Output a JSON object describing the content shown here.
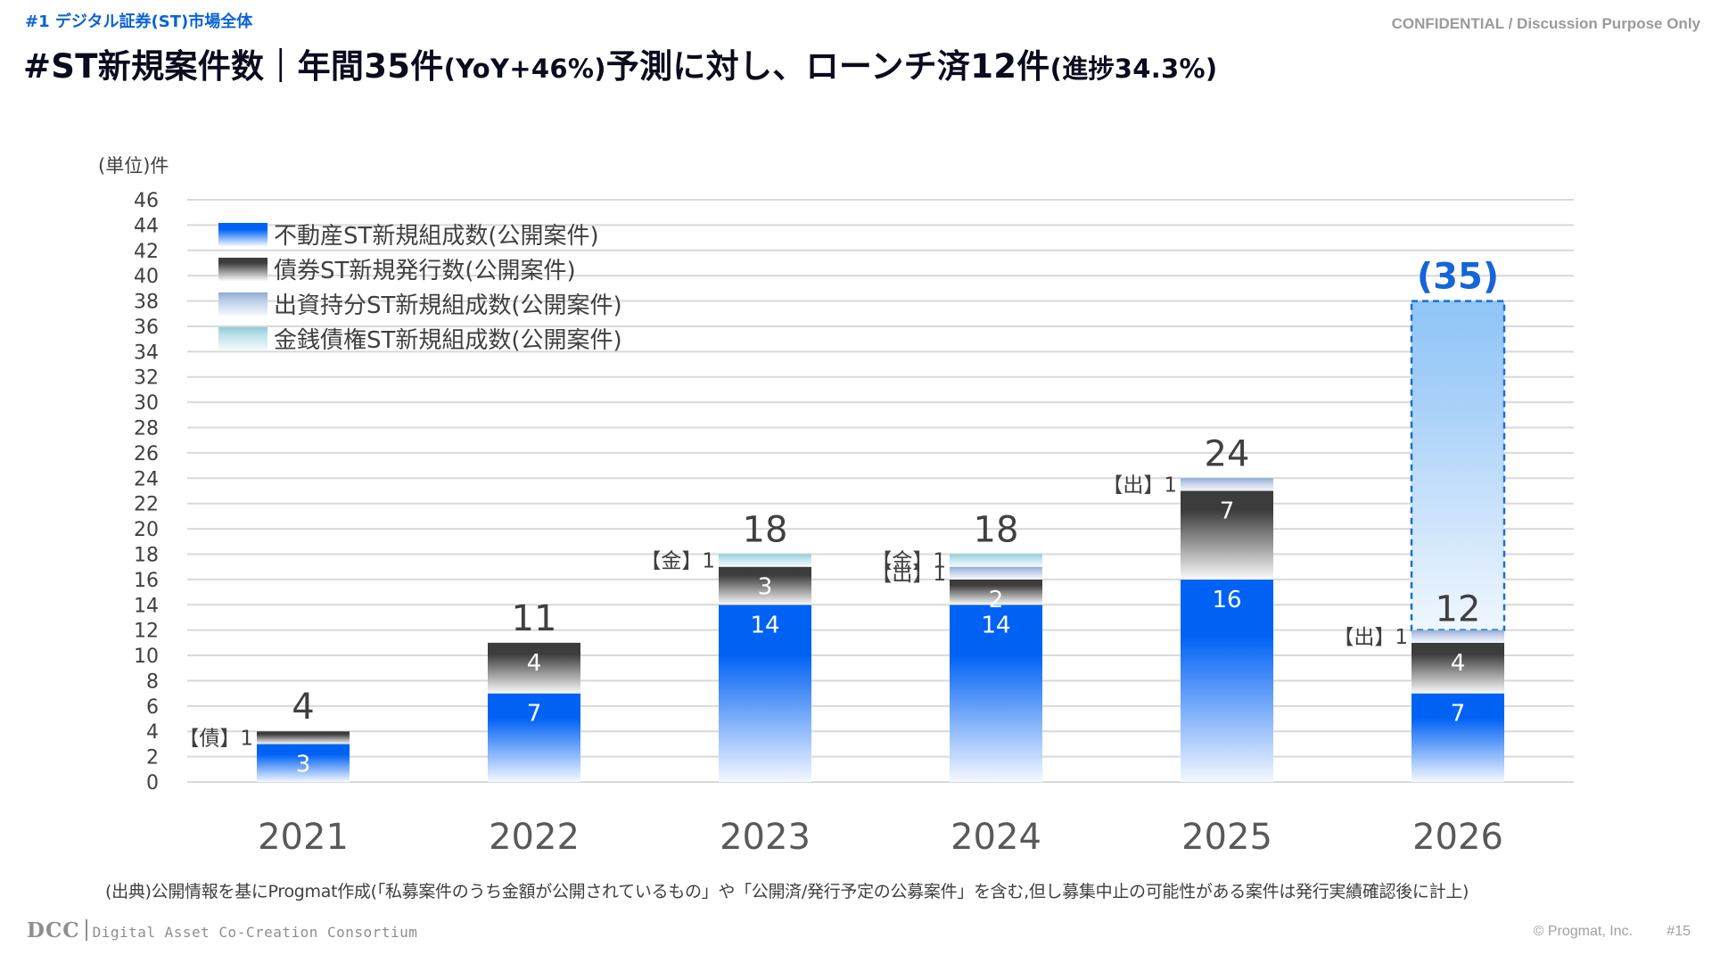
{
  "header": {
    "section_label": "#1  デジタル証券(ST)市場全体",
    "confidential": "CONFIDENTIAL / Discussion Purpose Only",
    "title_main_1": "#ST新規案件数｜年間35件",
    "title_small_1": "(YoY+46%)",
    "title_main_2": "予測に対し、ローンチ済12件",
    "title_small_2": "(進捗34.3%)"
  },
  "colors": {
    "real_estate": "#0062f5",
    "bond": "#3c3c3c",
    "equity": "#8eaad6",
    "monetary": "#8fcbd8",
    "forecast": "#8ec5f7",
    "forecast_border": "#1a6fd0",
    "forecast_label": "#1565d8",
    "grid": "#d9d9d9",
    "text": "#404040"
  },
  "chart_data": {
    "type": "bar",
    "stacked": true,
    "title": "",
    "xlabel": "",
    "ylabel": "(単位)件",
    "ylim": [
      0,
      46
    ],
    "ytick_step": 2,
    "yticks": [
      0,
      2,
      4,
      6,
      8,
      10,
      12,
      14,
      16,
      18,
      20,
      22,
      24,
      26,
      28,
      30,
      32,
      34,
      36,
      38,
      40,
      42,
      44,
      46
    ],
    "grid": true,
    "legend_position": "top-left",
    "categories": [
      "2021",
      "2022",
      "2023",
      "2024",
      "2025",
      "2026"
    ],
    "series": [
      {
        "key": "real_estate",
        "name": "不動産ST新規組成数(公開案件)",
        "values": [
          3,
          7,
          14,
          14,
          16,
          7
        ],
        "label_style": "inside"
      },
      {
        "key": "bond",
        "name": "債券ST新規発行数(公開案件)",
        "values": [
          1,
          4,
          3,
          2,
          7,
          4
        ],
        "label_style": "inside"
      },
      {
        "key": "equity",
        "name": "出資持分ST新規組成数(公開案件)",
        "values": [
          0,
          0,
          0,
          1,
          1,
          1
        ],
        "label_style": "side"
      },
      {
        "key": "monetary",
        "name": "金銭債権ST新規組成数(公開案件)",
        "values": [
          0,
          0,
          1,
          1,
          0,
          0
        ],
        "label_style": "side"
      }
    ],
    "side_labels": {
      "bond": "【債】",
      "equity": "【出】",
      "monetary": "【金】"
    },
    "small_segment_side_label": {
      "2021": "bond"
    },
    "totals": [
      4,
      11,
      18,
      18,
      24,
      12
    ],
    "forecast": {
      "category": "2026",
      "label": "(35)",
      "from": 12,
      "to": 38,
      "value": 35
    }
  },
  "footer": {
    "source": "(出典)公開情報を基にProgmat作成(「私募案件のうち金額が公開されているもの」や「公開済/発行予定の公募案件」を含む,但し募集中止の可能性がある案件は発行実績確認後に計上)",
    "logo_abbr": "DCC",
    "logo_org": "Digital Asset Co-Creation Consortium",
    "copyright": "© Progmat, Inc.",
    "page": "#15"
  }
}
